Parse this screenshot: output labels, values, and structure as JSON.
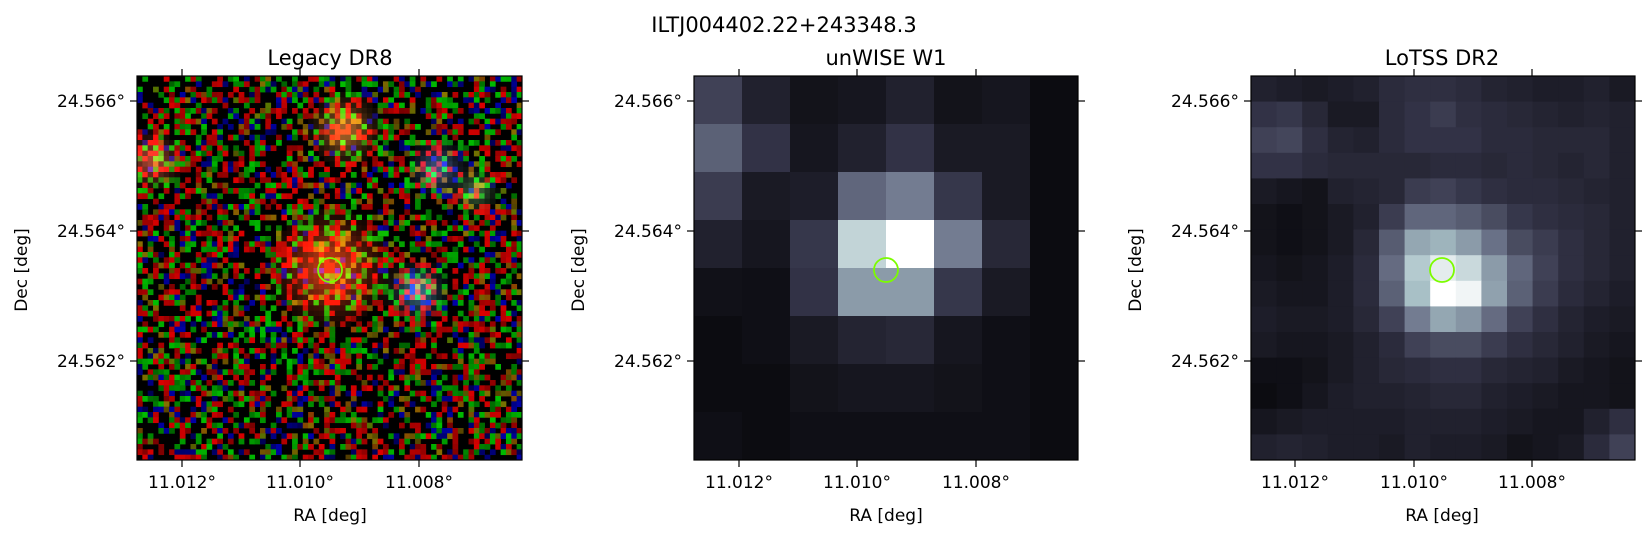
{
  "figure": {
    "suptitle": "ILTJ004402.22+243348.3"
  },
  "panels": [
    {
      "id": "legacy",
      "title": "Legacy DR8",
      "xlabel": "RA [deg]",
      "ylabel": "Dec [deg]",
      "xticks": [
        "11.012°",
        "11.010°",
        "11.008°"
      ],
      "yticks": [
        "24.566°",
        "24.564°",
        "24.562°"
      ],
      "style": "rgb-noise",
      "grid_cols": 72,
      "grid_rows": 72
    },
    {
      "id": "unwise",
      "title": "unWISE W1",
      "xlabel": "RA [deg]",
      "ylabel": "Dec [deg]",
      "xticks": [
        "11.012°",
        "11.010°",
        "11.008°"
      ],
      "yticks": [
        "24.566°",
        "24.564°",
        "24.562°"
      ],
      "style": "gray-blocks",
      "grid_cols": 8,
      "grid_rows": 8,
      "levels": [
        [
          0.3,
          0.14,
          0.06,
          0.08,
          0.14,
          0.06,
          0.08,
          0.02
        ],
        [
          0.42,
          0.24,
          0.08,
          0.14,
          0.24,
          0.1,
          0.1,
          0.02
        ],
        [
          0.28,
          0.1,
          0.12,
          0.44,
          0.52,
          0.26,
          0.1,
          0.02
        ],
        [
          0.14,
          0.08,
          0.26,
          0.82,
          1.0,
          0.52,
          0.18,
          0.02
        ],
        [
          0.05,
          0.04,
          0.24,
          0.62,
          0.62,
          0.26,
          0.1,
          0.02
        ],
        [
          0.02,
          0.04,
          0.1,
          0.16,
          0.18,
          0.08,
          0.04,
          0.02
        ],
        [
          0.02,
          0.02,
          0.06,
          0.08,
          0.08,
          0.06,
          0.04,
          0.02
        ],
        [
          0.04,
          0.02,
          0.04,
          0.04,
          0.04,
          0.04,
          0.04,
          0.02
        ]
      ]
    },
    {
      "id": "lotss",
      "title": "LoTSS DR2",
      "xlabel": "RA [deg]",
      "ylabel": "Dec [deg]",
      "xticks": [
        "11.012°",
        "11.010°",
        "11.008°"
      ],
      "yticks": [
        "24.566°",
        "24.564°",
        "24.562°"
      ],
      "style": "gray-blocks",
      "grid_cols": 15,
      "grid_rows": 15,
      "levels": [
        [
          0.14,
          0.12,
          0.1,
          0.12,
          0.14,
          0.2,
          0.22,
          0.22,
          0.2,
          0.16,
          0.14,
          0.12,
          0.12,
          0.14,
          0.1
        ],
        [
          0.24,
          0.26,
          0.18,
          0.1,
          0.1,
          0.2,
          0.24,
          0.28,
          0.22,
          0.2,
          0.18,
          0.16,
          0.14,
          0.16,
          0.14
        ],
        [
          0.3,
          0.32,
          0.22,
          0.16,
          0.14,
          0.2,
          0.24,
          0.24,
          0.24,
          0.2,
          0.2,
          0.18,
          0.18,
          0.18,
          0.14
        ],
        [
          0.24,
          0.24,
          0.2,
          0.18,
          0.18,
          0.18,
          0.18,
          0.2,
          0.2,
          0.18,
          0.2,
          0.18,
          0.16,
          0.18,
          0.14
        ],
        [
          0.1,
          0.08,
          0.06,
          0.14,
          0.16,
          0.18,
          0.28,
          0.3,
          0.26,
          0.22,
          0.2,
          0.2,
          0.18,
          0.16,
          0.14
        ],
        [
          0.06,
          0.04,
          0.06,
          0.1,
          0.14,
          0.28,
          0.44,
          0.44,
          0.4,
          0.34,
          0.26,
          0.22,
          0.2,
          0.18,
          0.14
        ],
        [
          0.06,
          0.04,
          0.06,
          0.1,
          0.18,
          0.4,
          0.66,
          0.7,
          0.62,
          0.48,
          0.34,
          0.28,
          0.22,
          0.18,
          0.14
        ],
        [
          0.08,
          0.06,
          0.08,
          0.12,
          0.2,
          0.46,
          0.78,
          0.92,
          0.84,
          0.62,
          0.44,
          0.3,
          0.22,
          0.18,
          0.14
        ],
        [
          0.1,
          0.08,
          0.08,
          0.12,
          0.2,
          0.42,
          0.74,
          1.0,
          0.96,
          0.64,
          0.42,
          0.28,
          0.2,
          0.16,
          0.12
        ],
        [
          0.12,
          0.1,
          0.1,
          0.12,
          0.18,
          0.3,
          0.52,
          0.66,
          0.6,
          0.46,
          0.3,
          0.22,
          0.16,
          0.12,
          0.1
        ],
        [
          0.1,
          0.08,
          0.08,
          0.1,
          0.14,
          0.2,
          0.3,
          0.34,
          0.34,
          0.28,
          0.22,
          0.18,
          0.14,
          0.1,
          0.08
        ],
        [
          0.04,
          0.04,
          0.06,
          0.1,
          0.14,
          0.18,
          0.2,
          0.22,
          0.22,
          0.18,
          0.16,
          0.14,
          0.1,
          0.08,
          0.06
        ],
        [
          0.02,
          0.04,
          0.08,
          0.12,
          0.14,
          0.14,
          0.16,
          0.18,
          0.18,
          0.14,
          0.12,
          0.1,
          0.08,
          0.08,
          0.06
        ],
        [
          0.08,
          0.1,
          0.12,
          0.12,
          0.12,
          0.12,
          0.14,
          0.14,
          0.14,
          0.12,
          0.1,
          0.08,
          0.08,
          0.14,
          0.22
        ],
        [
          0.14,
          0.16,
          0.14,
          0.12,
          0.12,
          0.1,
          0.14,
          0.12,
          0.12,
          0.1,
          0.06,
          0.08,
          0.1,
          0.2,
          0.3
        ]
      ]
    }
  ],
  "marker": {
    "shape": "circle",
    "color": "#7cfc00"
  },
  "colors": {
    "frame": "#000000",
    "colormap_low": "#0a0a0d",
    "colormap_high": "#ffffff"
  }
}
